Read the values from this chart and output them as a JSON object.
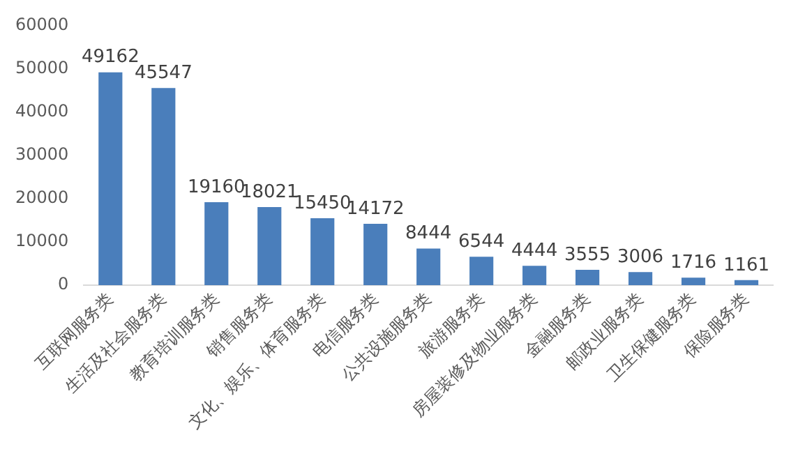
{
  "chart_data": {
    "type": "bar",
    "categories": [
      "互联网服务类",
      "生活及社会服务类",
      "教育培训服务类",
      "销售服务类",
      "文化、娱乐、体育服务类",
      "电信服务类",
      "公共设施服务类",
      "旅游服务类",
      "房屋装修及物业服务类",
      "金融服务类",
      "邮政业服务类",
      "卫生保健服务类",
      "保险服务类"
    ],
    "values": [
      49162,
      45547,
      19160,
      18021,
      15450,
      14172,
      8444,
      6544,
      4444,
      3555,
      3006,
      1716,
      1161
    ],
    "color": "#4a7ebb",
    "ylim": [
      0,
      60000
    ],
    "yticks": [
      0,
      10000,
      20000,
      30000,
      40000,
      50000,
      60000
    ],
    "grid": false,
    "legend": false,
    "data_labels": true
  }
}
